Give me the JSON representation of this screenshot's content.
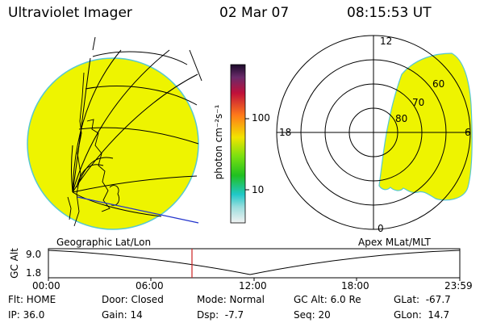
{
  "header": {
    "title": "Ultraviolet Imager",
    "date": "02 Mar 07",
    "time": "08:15:53 UT"
  },
  "colorbar": {
    "label": "photon cm⁻²s⁻¹",
    "tick_100": "100",
    "tick_10": "10"
  },
  "left_panel": {
    "caption": "Geographic Lat/Lon"
  },
  "right_panel": {
    "caption": "Apex MLat/MLT",
    "mlt_labels": {
      "top": "12",
      "left": "18",
      "right": "6",
      "bottom": "0"
    },
    "lat_labels": [
      "60",
      "70",
      "80"
    ]
  },
  "altitude_strip": {
    "ylabel": "GC Alt",
    "y_top": "9.0",
    "y_bottom": "1.8",
    "marker_time_fraction": 0.349,
    "time_labels": [
      "00:00",
      "06:00",
      "12:00",
      "18:00",
      "23:59"
    ]
  },
  "info": {
    "flt": "Flt: HOME",
    "ip": "IP: 36.0",
    "door": "Door: Closed",
    "gain": "Gain: 14",
    "mode": "Mode: Normal",
    "dsp": "Dsp:  -7.7",
    "gcalt": "GC Alt: 6.0 Re",
    "seq": "Seq: 20",
    "glat": "GLat:  -67.7",
    "glon": "GLon:  14.7"
  },
  "colors": {
    "disk": "#eef400",
    "disk_edge": "#56c8d2",
    "marker": "#cc2222",
    "blue_line": "#2233cc"
  }
}
